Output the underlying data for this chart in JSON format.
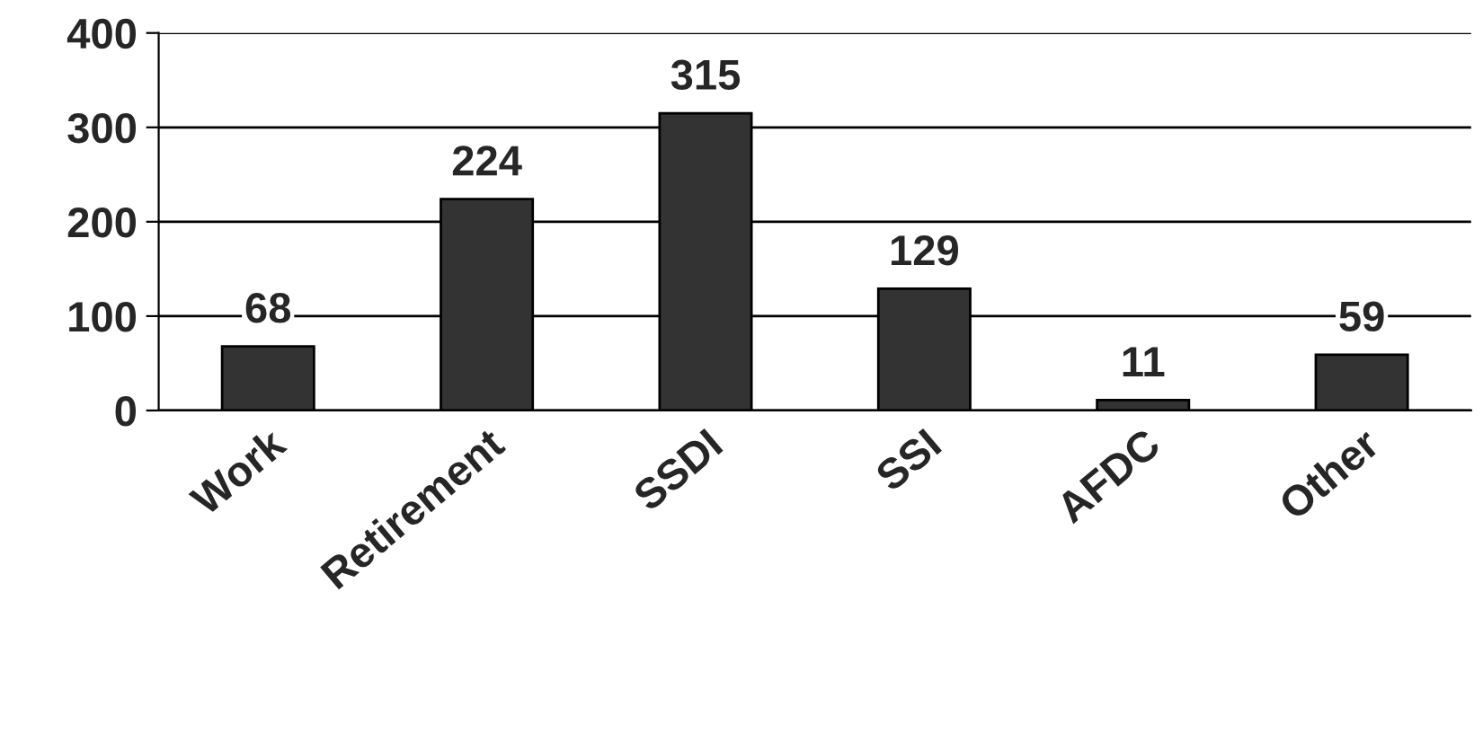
{
  "chart_data": {
    "type": "bar",
    "categories": [
      "Work",
      "Retirement",
      "SSDI",
      "SSI",
      "AFDC",
      "Other"
    ],
    "values": [
      68,
      224,
      315,
      129,
      11,
      59
    ],
    "color": "#333333",
    "ylim": [
      0,
      400
    ],
    "yticks": [
      0,
      100,
      200,
      300,
      400
    ],
    "grid": "y",
    "data_labels": true
  }
}
